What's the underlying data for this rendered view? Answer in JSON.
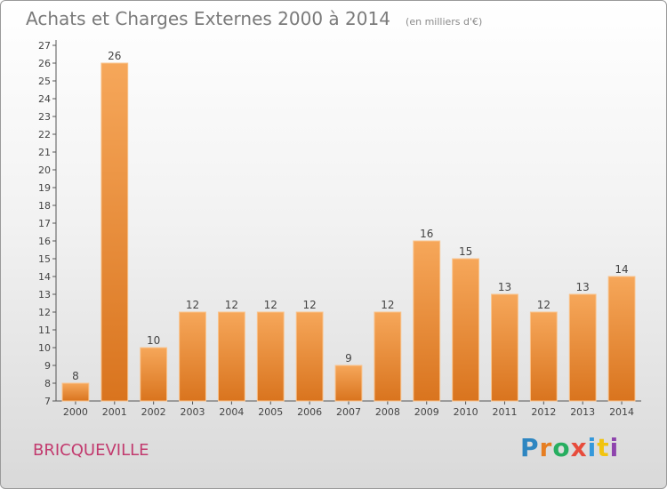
{
  "header": {
    "title": "Achats et Charges Externes 2000 à 2014",
    "unit": "(en milliers d'€)"
  },
  "footer": {
    "commune": "BRICQUEVILLE",
    "logo": {
      "letters": [
        "P",
        "r",
        "o",
        "x",
        "i",
        "t",
        "i"
      ],
      "colors": [
        "#2e86c1",
        "#e67e22",
        "#27ae60",
        "#e74c3c",
        "#3498db",
        "#f1c40f",
        "#8e44ad"
      ]
    }
  },
  "colors": {
    "bar_light": "#f6a75a",
    "bar_dark": "#d9741e",
    "axis": "#555555",
    "grid": "#bbbbbb"
  },
  "chart_data": {
    "type": "bar",
    "categories": [
      "2000",
      "2001",
      "2002",
      "2003",
      "2004",
      "2005",
      "2006",
      "2007",
      "2008",
      "2009",
      "2010",
      "2011",
      "2012",
      "2013",
      "2014"
    ],
    "values": [
      8,
      26,
      10,
      12,
      12,
      12,
      12,
      9,
      12,
      16,
      15,
      13,
      12,
      13,
      14
    ],
    "ylim": [
      7,
      27
    ],
    "yticks": [
      7,
      8,
      9,
      10,
      11,
      12,
      13,
      14,
      15,
      16,
      17,
      18,
      19,
      20,
      21,
      22,
      23,
      24,
      25,
      26,
      27
    ],
    "grid": false,
    "legend": "none"
  }
}
